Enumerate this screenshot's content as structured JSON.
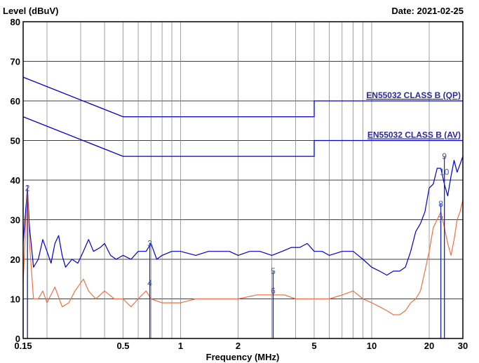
{
  "chart_data": {
    "type": "line",
    "ylabel": "Level (dBuV)",
    "xlabel": "Frequency (MHz)",
    "date_label": "Date: 2021-02-25",
    "x_scale": "log",
    "xlim": [
      0.15,
      30
    ],
    "ylim": [
      0,
      80
    ],
    "x_ticks": [
      {
        "v": 0.15,
        "label": "0.15"
      },
      {
        "v": 0.5,
        "label": "0.5"
      },
      {
        "v": 1,
        "label": "1"
      },
      {
        "v": 2,
        "label": "2"
      },
      {
        "v": 5,
        "label": "5"
      },
      {
        "v": 10,
        "label": "10"
      },
      {
        "v": 20,
        "label": "20"
      },
      {
        "v": 30,
        "label": "30"
      }
    ],
    "y_ticks": [
      0,
      10,
      20,
      30,
      40,
      50,
      60,
      70,
      80
    ],
    "y_tick_labels": [
      "0",
      "10",
      "20",
      "30",
      "40",
      "50",
      "60",
      "70",
      "80"
    ],
    "grid": true,
    "limit_lines": [
      {
        "name": "EN55032 CLASS B (QP)",
        "color": "#0000cc",
        "points": [
          [
            0.15,
            66
          ],
          [
            0.5,
            56
          ],
          [
            5,
            56
          ],
          [
            5,
            60
          ],
          [
            30,
            60
          ]
        ]
      },
      {
        "name": "EN55032 CLASS B (AV)",
        "color": "#0000cc",
        "points": [
          [
            0.15,
            56
          ],
          [
            0.5,
            46
          ],
          [
            5,
            46
          ],
          [
            5,
            50
          ],
          [
            30,
            50
          ]
        ]
      }
    ],
    "series": [
      {
        "color": "#0000cc",
        "points": [
          [
            0.15,
            24
          ],
          [
            0.155,
            33
          ],
          [
            0.158,
            38
          ],
          [
            0.162,
            28
          ],
          [
            0.17,
            18
          ],
          [
            0.18,
            20
          ],
          [
            0.19,
            25
          ],
          [
            0.2,
            22
          ],
          [
            0.21,
            19
          ],
          [
            0.22,
            24
          ],
          [
            0.23,
            26
          ],
          [
            0.24,
            21
          ],
          [
            0.25,
            18
          ],
          [
            0.27,
            20
          ],
          [
            0.29,
            19
          ],
          [
            0.31,
            22
          ],
          [
            0.33,
            25
          ],
          [
            0.35,
            22
          ],
          [
            0.38,
            23
          ],
          [
            0.4,
            24
          ],
          [
            0.43,
            21
          ],
          [
            0.46,
            20
          ],
          [
            0.5,
            21
          ],
          [
            0.55,
            20
          ],
          [
            0.6,
            22
          ],
          [
            0.66,
            22
          ],
          [
            0.7,
            24
          ],
          [
            0.75,
            20
          ],
          [
            0.8,
            21
          ],
          [
            0.9,
            22
          ],
          [
            1.0,
            22
          ],
          [
            1.2,
            21
          ],
          [
            1.4,
            22
          ],
          [
            1.6,
            22
          ],
          [
            1.8,
            22
          ],
          [
            2.0,
            21
          ],
          [
            2.3,
            22
          ],
          [
            2.6,
            22
          ],
          [
            3.0,
            21
          ],
          [
            3.4,
            22
          ],
          [
            3.8,
            23
          ],
          [
            4.2,
            23
          ],
          [
            4.6,
            24
          ],
          [
            5.0,
            22
          ],
          [
            5.5,
            22
          ],
          [
            6.0,
            21
          ],
          [
            7.0,
            22
          ],
          [
            8.0,
            22
          ],
          [
            9.0,
            20
          ],
          [
            10.0,
            18
          ],
          [
            11.0,
            17
          ],
          [
            12.0,
            16
          ],
          [
            13.0,
            17
          ],
          [
            14.0,
            17
          ],
          [
            15.0,
            18
          ],
          [
            16.0,
            22
          ],
          [
            17.0,
            27
          ],
          [
            18.0,
            29
          ],
          [
            19.0,
            32
          ],
          [
            20.0,
            38
          ],
          [
            21.0,
            39
          ],
          [
            22.0,
            43
          ],
          [
            23.0,
            43
          ],
          [
            24.0,
            39
          ],
          [
            25.0,
            36
          ],
          [
            26.0,
            41
          ],
          [
            27.0,
            45
          ],
          [
            28.0,
            42
          ],
          [
            29.0,
            44
          ],
          [
            30.0,
            46
          ]
        ]
      },
      {
        "color": "#f07040",
        "points": [
          [
            0.15,
            14
          ],
          [
            0.155,
            30
          ],
          [
            0.158,
            38
          ],
          [
            0.162,
            24
          ],
          [
            0.17,
            10
          ],
          [
            0.18,
            10
          ],
          [
            0.19,
            12
          ],
          [
            0.2,
            9
          ],
          [
            0.22,
            13
          ],
          [
            0.24,
            8
          ],
          [
            0.26,
            9
          ],
          [
            0.28,
            12
          ],
          [
            0.31,
            15
          ],
          [
            0.33,
            12
          ],
          [
            0.36,
            10
          ],
          [
            0.4,
            12
          ],
          [
            0.45,
            10
          ],
          [
            0.5,
            10
          ],
          [
            0.55,
            8
          ],
          [
            0.6,
            10
          ],
          [
            0.66,
            12
          ],
          [
            0.7,
            10
          ],
          [
            0.8,
            9
          ],
          [
            0.9,
            9
          ],
          [
            1.0,
            9
          ],
          [
            1.2,
            10
          ],
          [
            1.5,
            10
          ],
          [
            1.8,
            10
          ],
          [
            2.0,
            10
          ],
          [
            2.5,
            11
          ],
          [
            3.0,
            11
          ],
          [
            3.5,
            11
          ],
          [
            4.0,
            10
          ],
          [
            4.5,
            10
          ],
          [
            5.0,
            10
          ],
          [
            6.0,
            10
          ],
          [
            7.0,
            11
          ],
          [
            8.0,
            12
          ],
          [
            9.0,
            10
          ],
          [
            10.0,
            9
          ],
          [
            11.0,
            8
          ],
          [
            12.0,
            7
          ],
          [
            13.0,
            6
          ],
          [
            14.0,
            6
          ],
          [
            15.0,
            7
          ],
          [
            16.0,
            9
          ],
          [
            17.0,
            10
          ],
          [
            18.0,
            12
          ],
          [
            19.0,
            17
          ],
          [
            20.0,
            22
          ],
          [
            21.0,
            28
          ],
          [
            22.0,
            30
          ],
          [
            23.0,
            32
          ],
          [
            24.0,
            28
          ],
          [
            25.0,
            24
          ],
          [
            26.0,
            21
          ],
          [
            27.0,
            25
          ],
          [
            28.0,
            30
          ],
          [
            29.0,
            32
          ],
          [
            30.0,
            35
          ]
        ]
      }
    ],
    "markers": [
      {
        "label": "2",
        "x": 0.158,
        "y": 38
      },
      {
        "label": "3",
        "x": 0.69,
        "y": 24
      },
      {
        "label": "4",
        "x": 0.69,
        "y": 14
      },
      {
        "label": "5",
        "x": 3.05,
        "y": 17
      },
      {
        "label": "6",
        "x": 3.05,
        "y": 12
      },
      {
        "label": "8",
        "x": 23.0,
        "y": 34
      },
      {
        "label": "9",
        "x": 24.0,
        "y": 46
      },
      {
        "label": "10",
        "x": 24.0,
        "y": 42
      },
      {
        "label": "1",
        "x": 0.158,
        "y": 38
      },
      {
        "label": "7",
        "x": 23.0,
        "y": 30
      }
    ]
  }
}
